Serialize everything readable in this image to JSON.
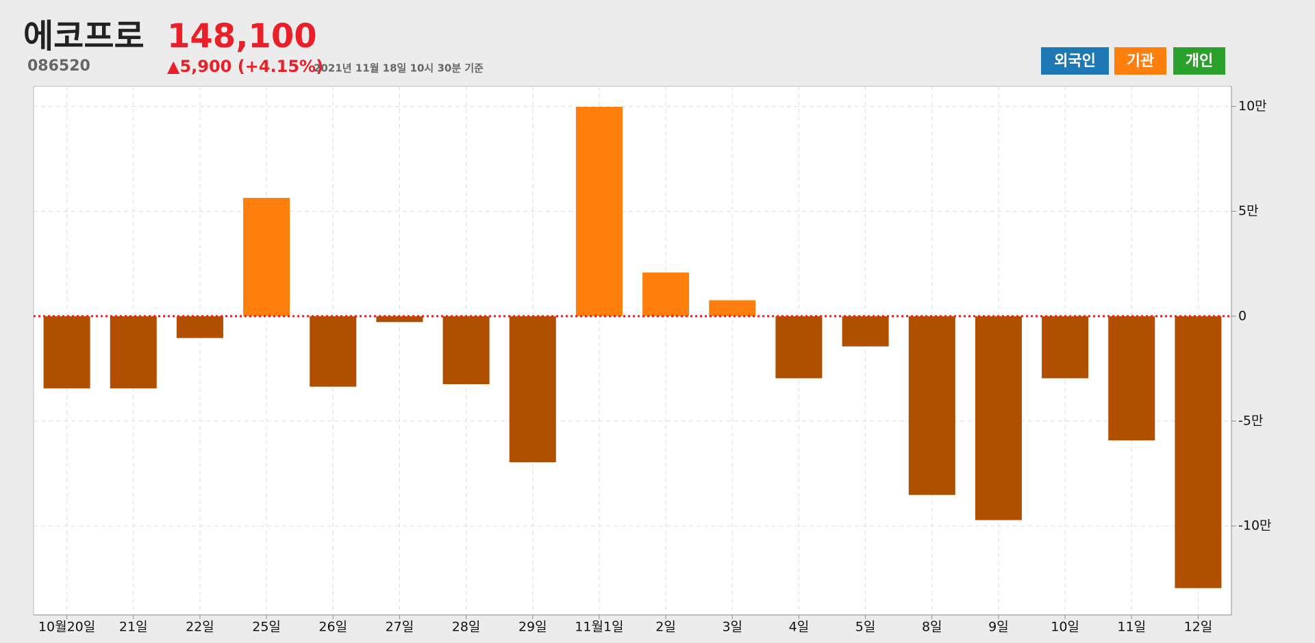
{
  "header": {
    "name": "에코프로",
    "price": "148,100",
    "code": "086520",
    "change": "▲5,900 (+4.15%)",
    "timestamp": "2021년 11월 18일 10시 30분 기준"
  },
  "buttons": [
    {
      "label": "외국인",
      "color": "#1f77b4"
    },
    {
      "label": "기관",
      "color": "#ff7f0e"
    },
    {
      "label": "개인",
      "color": "#2ca02c"
    }
  ],
  "chart_data": {
    "type": "bar",
    "categories": [
      "10월20일",
      "21일",
      "22일",
      "25일",
      "26일",
      "27일",
      "28일",
      "29일",
      "11월1일",
      "2일",
      "3일",
      "4일",
      "5일",
      "8일",
      "9일",
      "10일",
      "11일",
      "12일"
    ],
    "values": [
      -34400,
      -34400,
      -10400,
      56400,
      -33600,
      -2800,
      -32400,
      -69600,
      99800,
      20800,
      7600,
      -29600,
      -14400,
      -85200,
      -97200,
      -29600,
      -59200,
      -129600
    ],
    "color": "#ff7f0e",
    "negative_color": "#b14f00",
    "ylim": [
      -142400,
      109600
    ],
    "yticks": [
      {
        "value": -100000,
        "label": "-10만"
      },
      {
        "value": -50000,
        "label": "-5만"
      },
      0,
      {
        "value": 50000,
        "label": "5만"
      },
      {
        "value": 100000,
        "label": "10만"
      }
    ],
    "grid": true
  }
}
